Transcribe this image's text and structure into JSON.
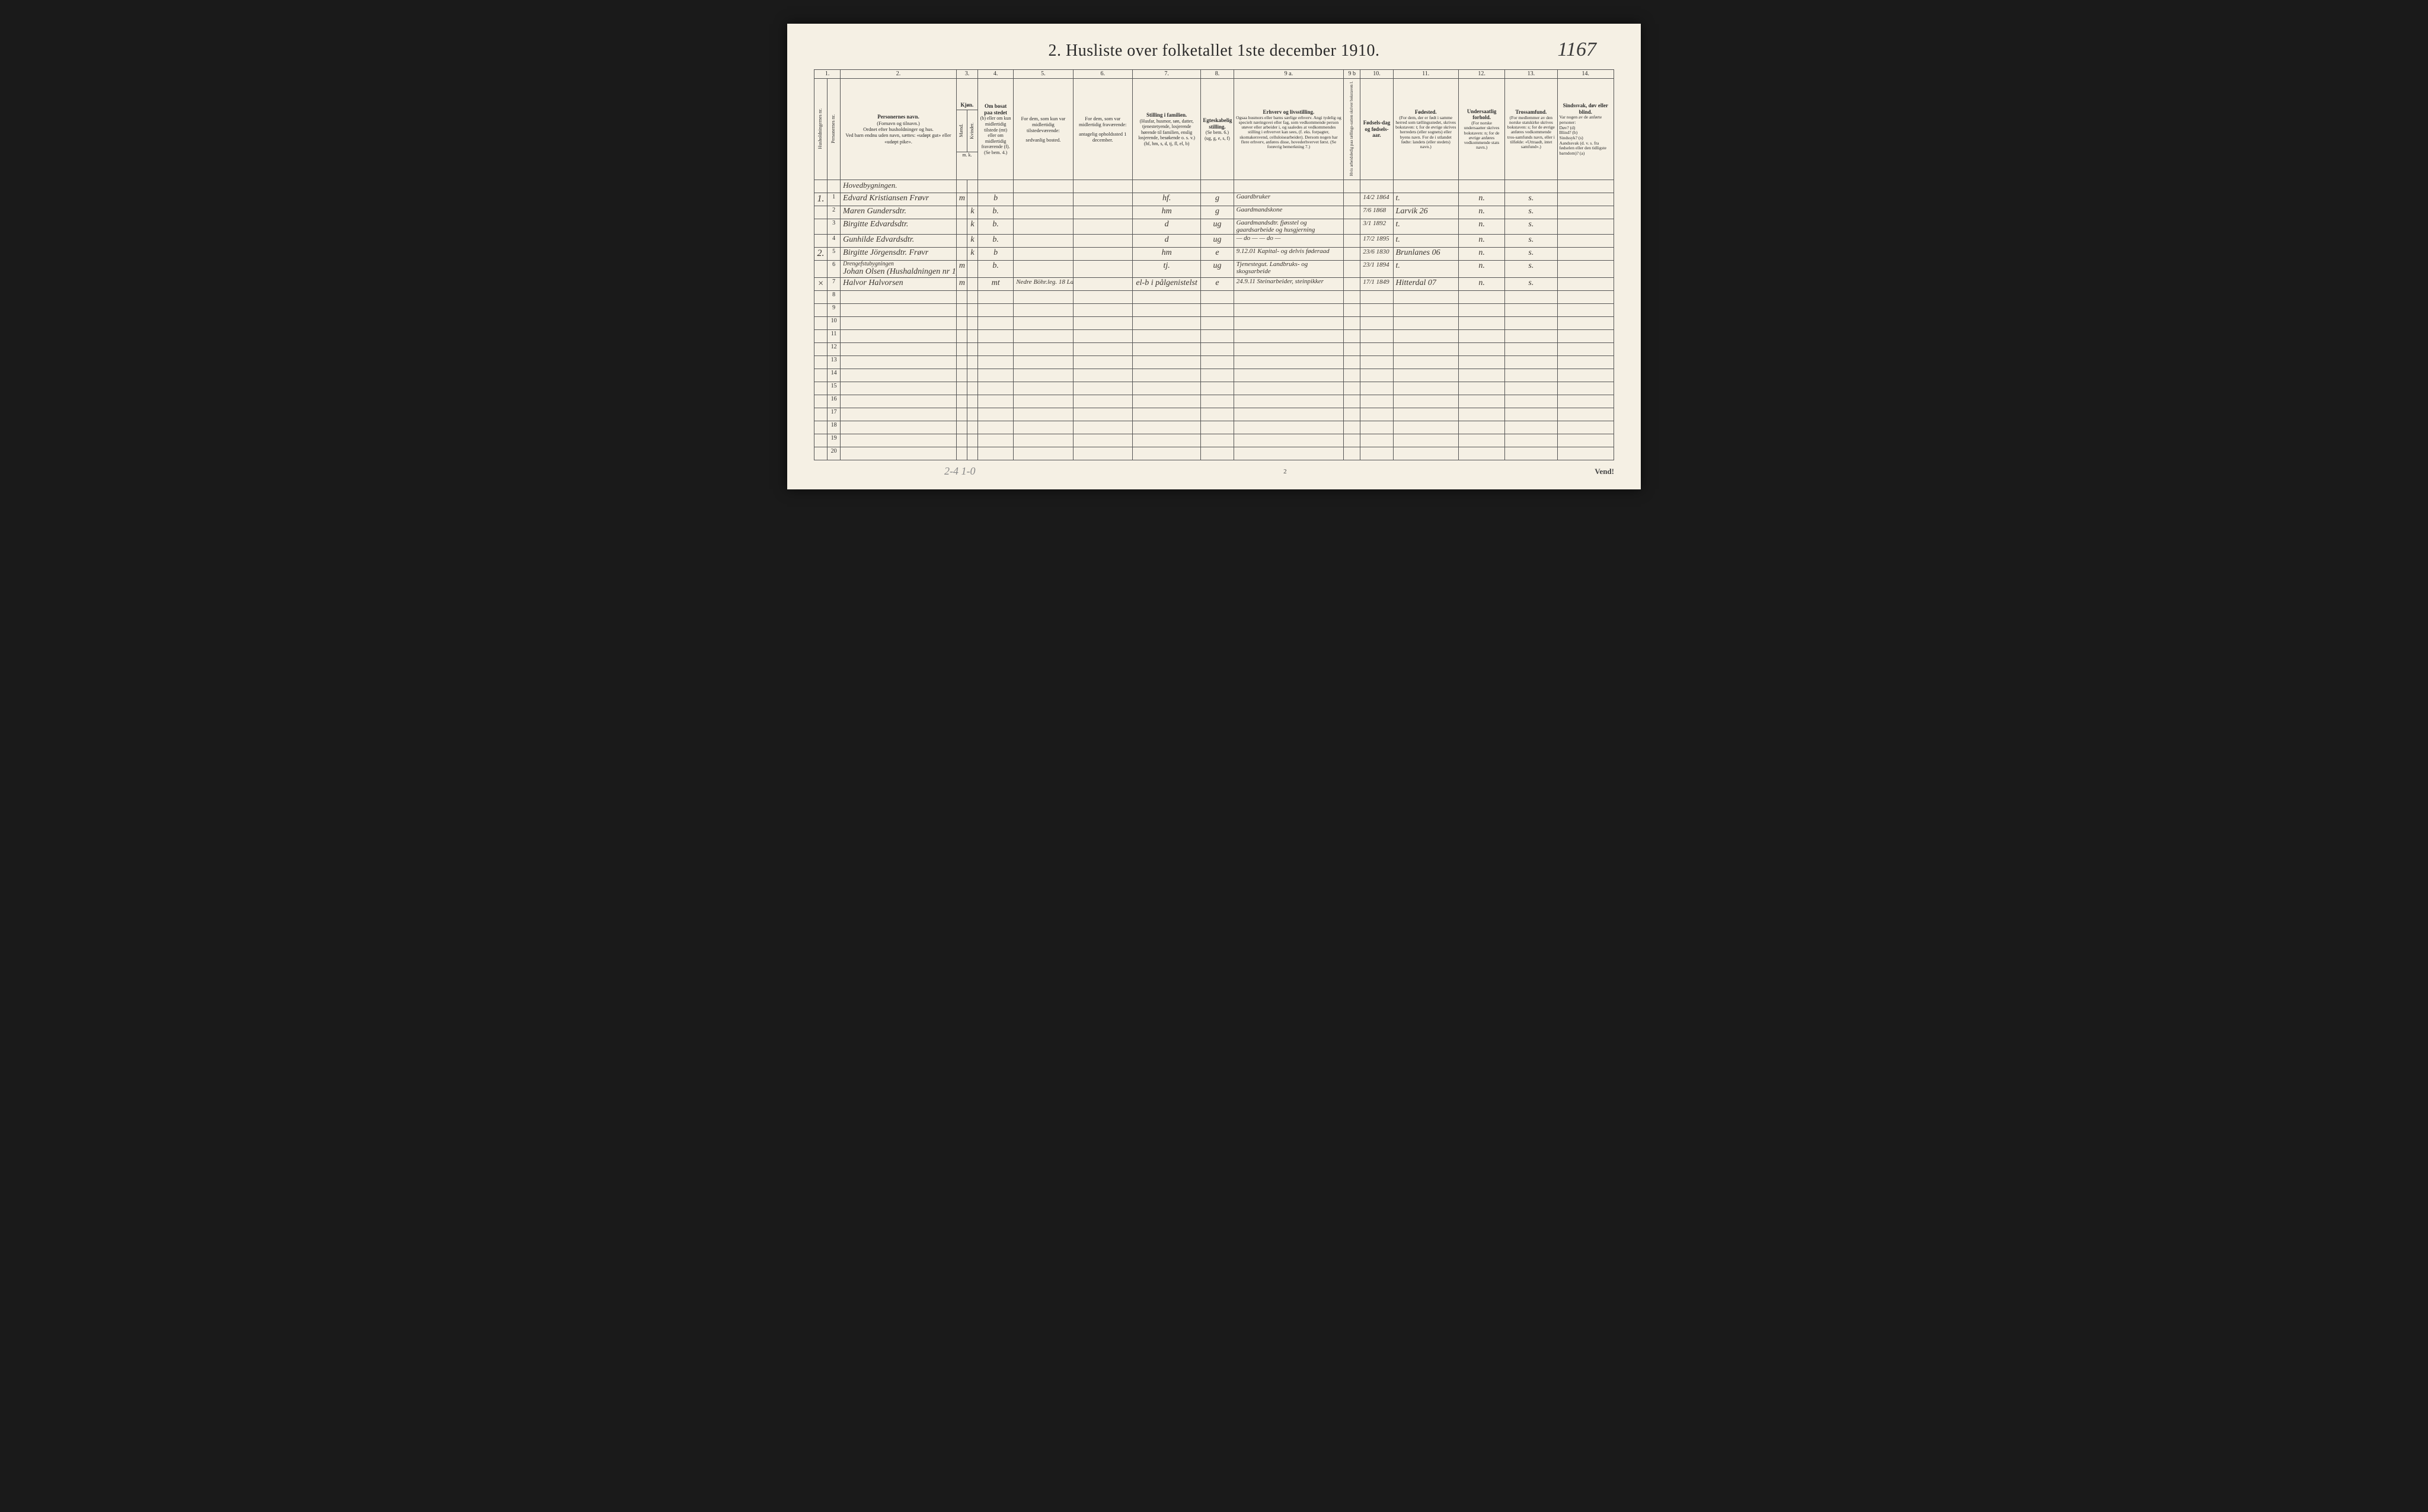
{
  "title": "2.  Husliste over folketallet 1ste december 1910.",
  "handwritten_page_number": "1167",
  "footer_page_number": "2",
  "footer_right": "Vend!",
  "pencil_note": "2-4   1-0",
  "colors": {
    "page_bg": "#f5f0e4",
    "border": "#555555",
    "text": "#2a2a2a",
    "handwriting": "#3a3530",
    "outer_bg": "#1a1a1a"
  },
  "column_numbers": [
    "1.",
    "2.",
    "3.",
    "4.",
    "5.",
    "6.",
    "7.",
    "8.",
    "9 a.",
    "9 b",
    "10.",
    "11.",
    "12.",
    "13.",
    "14."
  ],
  "headers": {
    "c1a": "Husholdningernes nr.",
    "c1b": "Personernes nr.",
    "c2_title": "Personernes navn.",
    "c2_sub": "(Fornavn og tilnavn.)\nOrdnet efter husholdninger og hus.\nVed barn endnu uden navn, sættes: «udøpt gut» eller «udøpt pike».",
    "c3_title": "Kjøn.",
    "c3a": "Mænd.",
    "c3b": "Kvinder.",
    "c3_foot": "m.  k.",
    "c4_title": "Om bosat paa stedet",
    "c4_body": "(b) eller om kun midlertidig tilstede (mt) eller om midlertidig fraværende (f).\n(Se bem. 4.)",
    "c5_title": "For dem, som kun var midlertidig tilstedeværende:",
    "c5_sub": "sedvanlig bosted.",
    "c6_title": "For dem, som var midlertidig fraværende:",
    "c6_sub": "antagelig opholdssted 1 december.",
    "c7_title": "Stilling i familien.",
    "c7_body": "(Husfar, husmor, søn, datter, tjenestetyende, losjerende hørende til familien, enslig losjerende, besøkende o. s. v.)\n(hf, hm, s, d, tj, fl, el, b)",
    "c8_title": "Egteskabelig stilling.",
    "c8_body": "(Se bem. 6.)\n(ug, g, e, s, f)",
    "c9a_title": "Erhverv og livsstilling.",
    "c9a_body": "Ogsaa husmors eller barns særlige erhverv. Angi tydelig og specielt næringsvei eller fag, som vedkommende person utøver eller arbeider i, og saaledes at vedkommendes stilling i erhvervet kan sees, (f. eks. forpagter, skomakersvend, celluloisearbeider). Dersom nogen har flere erhverv, anføres disse, hovederhvervet først.\n(Se forøvrig bemerkning 7.)",
    "c9b": "Hvis arbeidsledig paa tællings-satten skriver bokstaven l.",
    "c10_title": "Fødsels-dag og fødsels-aar.",
    "c11_title": "Fødested.",
    "c11_body": "(For dem, der er født i samme herred som tællingsstedet, skrives bokstaven: t; for de øvrige skrives herredets (eller sognets) eller byens navn. For de i utlandet fødte: landets (eller stedets) navn.)",
    "c12_title": "Undersaatlig forhold.",
    "c12_body": "(For norske undersaatter skrives bokstaven: n; for de øvrige anføres vedkommende stats navn.)",
    "c13_title": "Trossamfund.",
    "c13_body": "(For medlemmer av den norske statskirke skrives bokstaven: s; for de øvrige anføres vedkommende tros-samfunds navn, eller i tilfølde: «Uttraadt, intet samfund».)",
    "c14_title": "Sindssvak, døv eller blind.",
    "c14_body": "Var nogen av de anførte personer:\nDøv?       (d)\nBlind?      (b)\nSindssyk? (s)\nAandssvak (d. v. s. fra fødselen eller den tidligste barndom)? (a)"
  },
  "section_label": "Hovedbygningen.",
  "drengestu_label": "Drengefstubygningen",
  "rows": [
    {
      "hh": "1.",
      "n": "1",
      "name": "Edvard Kristiansen Frøvr",
      "mk": "m",
      "res": "b",
      "c5": "",
      "c6": "",
      "fam": "hf.",
      "egte": "g",
      "erhv": "Gaardbruker",
      "fd": "14/2 1864",
      "fs": "t.",
      "us": "n.",
      "tro": "s.",
      "sind": ""
    },
    {
      "hh": "",
      "n": "2",
      "name": "Maren Gundersdtr.",
      "mk": "k",
      "res": "b.",
      "c5": "",
      "c6": "",
      "fam": "hm",
      "egte": "g",
      "erhv": "Gaardmandskone",
      "fd": "7/6 1868",
      "fs": "Larvik 26",
      "us": "n.",
      "tro": "s.",
      "sind": ""
    },
    {
      "hh": "",
      "n": "3",
      "name": "Birgitte Edvardsdtr.",
      "mk": "k",
      "res": "b.",
      "c5": "",
      "c6": "",
      "fam": "d",
      "egte": "ug",
      "erhv": "Gaardmandsdtr. fjøsstel og gaardsarbeide og husgjerning",
      "fd": "3/1 1892",
      "fs": "t.",
      "us": "n.",
      "tro": "s.",
      "sind": ""
    },
    {
      "hh": "",
      "n": "4",
      "name": "Gunhilde Edvardsdtr.",
      "mk": "k",
      "res": "b.",
      "c5": "",
      "c6": "",
      "fam": "d",
      "egte": "ug",
      "erhv": "— do — — do —",
      "fd": "17/2 1895",
      "fs": "t.",
      "us": "n.",
      "tro": "s.",
      "sind": ""
    },
    {
      "hh": "2.",
      "n": "5",
      "name": "Birgitte Jörgensdtr. Frøvr",
      "mk": "k",
      "res": "b",
      "c5": "",
      "c6": "",
      "fam": "hm",
      "egte": "e",
      "erhv": "9.12.01  Kapital- og delvis føderaad",
      "fd": "23/6 1830",
      "fs": "Brunlanes 06",
      "us": "n.",
      "tro": "s.",
      "sind": ""
    },
    {
      "hh": "",
      "n": "6",
      "name": "Johan Olsen (Hushaldningen nr 1)",
      "mk": "m",
      "res": "b.",
      "c5": "",
      "c6": "",
      "fam": "tj.",
      "egte": "ug",
      "erhv": "Tjenestegut. Landbruks- og skogsarbeide",
      "fd": "23/1 1894",
      "fs": "t.",
      "us": "n.",
      "tro": "s.",
      "sind": ""
    },
    {
      "hh": "×",
      "n": "7",
      "name": "Halvor Halvorsen",
      "mk": "m",
      "res": "mt",
      "c5": "Nedre Böhr.leg. 18  Larvik",
      "c6": "",
      "fam": "el-b i pålgenistelst",
      "egte": "e",
      "erhv": "24.9.11  Steinarbeider, steinpikker",
      "fd": "17/1 1849",
      "fs": "Hitterdal 07",
      "us": "n.",
      "tro": "s.",
      "sind": ""
    }
  ],
  "empty_rows": [
    8,
    9,
    10,
    11,
    12,
    13,
    14,
    15,
    16,
    17,
    18,
    19,
    20
  ]
}
